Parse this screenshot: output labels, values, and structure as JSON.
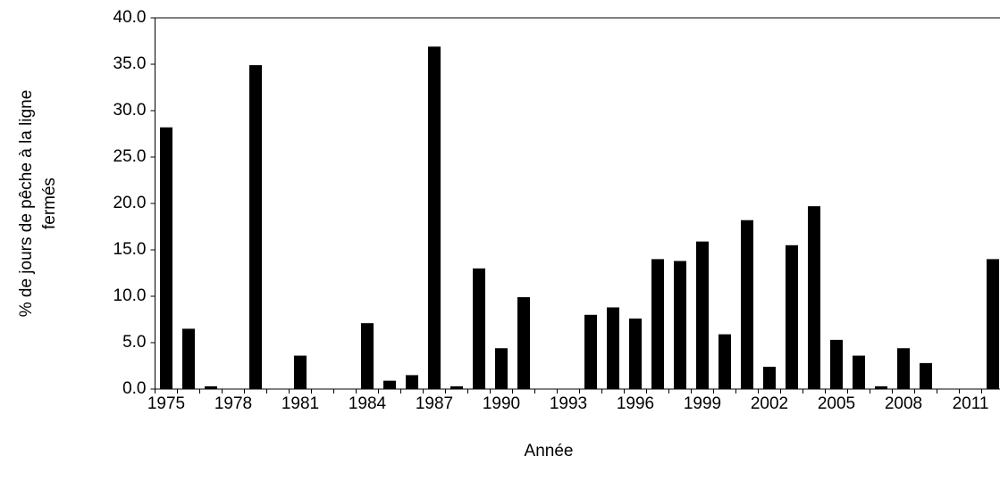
{
  "chart_data": {
    "type": "bar",
    "xlabel": "Année",
    "ylabel": [
      "% de jours de pêche à la ligne",
      "fermés"
    ],
    "categories": [
      "1975",
      null,
      null,
      "1978",
      null,
      null,
      "1981",
      null,
      null,
      "1984",
      null,
      null,
      "1987",
      null,
      null,
      "1990",
      null,
      null,
      "1993",
      null,
      null,
      "1996",
      null,
      null,
      "1999",
      null,
      null,
      "2002",
      null,
      null,
      "2005",
      null,
      null,
      "2008",
      null,
      null,
      "2011",
      null
    ],
    "values": [
      28.2,
      6.5,
      0.3,
      0,
      34.9,
      0,
      3.6,
      0,
      0,
      7.1,
      0.9,
      1.5,
      36.9,
      0.3,
      13.0,
      4.4,
      9.9,
      0,
      0,
      8.0,
      8.8,
      7.6,
      14.0,
      13.8,
      15.9,
      5.9,
      18.2,
      2.4,
      15.5,
      19.7,
      5.3,
      3.6,
      0.3,
      4.4,
      2.8,
      0,
      0,
      14.0
    ],
    "color": "#000000",
    "ylim": [
      0,
      40
    ],
    "yticks": [
      {
        "value": 0,
        "label": "0.0"
      },
      {
        "value": 5,
        "label": "5.0"
      },
      {
        "value": 10,
        "label": "10.0"
      },
      {
        "value": 15,
        "label": "15.0"
      },
      {
        "value": 20,
        "label": "20.0"
      },
      {
        "value": 25,
        "label": "25.0"
      },
      {
        "value": 30,
        "label": "30.0"
      },
      {
        "value": 35,
        "label": "35.0"
      },
      {
        "value": 40,
        "label": "40.0"
      }
    ],
    "grid": false
  }
}
